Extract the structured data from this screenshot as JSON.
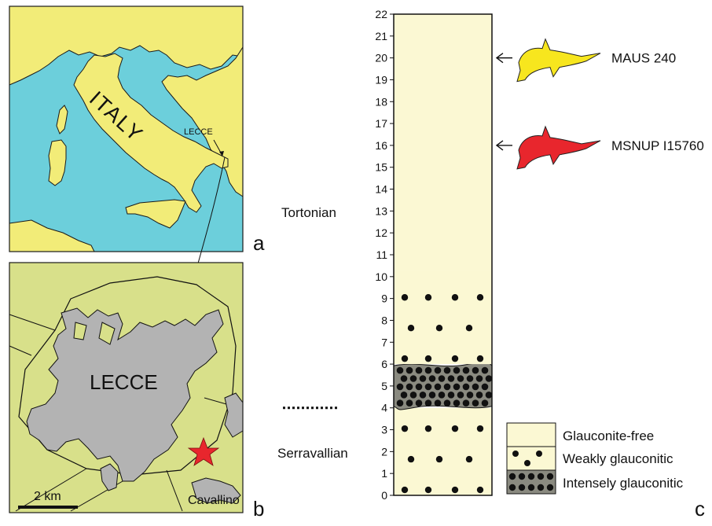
{
  "panel_a": {
    "letter": "a",
    "country_label": "ITALY",
    "city_label": "LECCE",
    "colors": {
      "land": "#f2ec78",
      "sea": "#6ccfdb"
    }
  },
  "panel_b": {
    "letter": "b",
    "city_label": "LECCE",
    "town_label": "Cavallino",
    "scale_label": "2 km",
    "marker": "star-icon",
    "colors": {
      "land": "#d8e08a",
      "urban": "#b3b3b3",
      "marker": "#e8262d"
    }
  },
  "panel_c": {
    "letter": "c",
    "stages": {
      "upper": "Tortonian",
      "lower": "Serravallian"
    },
    "axis": {
      "min": 0,
      "max": 22,
      "step": 1,
      "ticks": [
        "0",
        "1",
        "2",
        "3",
        "4",
        "5",
        "6",
        "7",
        "8",
        "9",
        "10",
        "11",
        "12",
        "13",
        "14",
        "15",
        "16",
        "17",
        "18",
        "19",
        "20",
        "21",
        "22"
      ]
    },
    "layers": [
      {
        "name": "Weakly glauconitic",
        "bottom": 0,
        "top": 4
      },
      {
        "name": "Intensely glauconitic",
        "bottom": 4,
        "top": 6
      },
      {
        "name": "Weakly glauconitic",
        "bottom": 6,
        "top": 10.3
      },
      {
        "name": "Glauconite-free",
        "bottom": 10.3,
        "top": 22
      }
    ],
    "specimens": [
      {
        "label": "MAUS 240",
        "level": 20,
        "color": "#f7e61e"
      },
      {
        "label": "MSNUP I15760",
        "level": 16,
        "color": "#e8262d"
      }
    ],
    "boundary_level": 4,
    "legend": [
      {
        "label": "Glauconite-free",
        "fill": "#fbf8d3"
      },
      {
        "label": "Weakly glauconitic",
        "fill": "#fbf8d3"
      },
      {
        "label": "Intensely glauconitic",
        "fill": "#8a8a80"
      }
    ]
  }
}
